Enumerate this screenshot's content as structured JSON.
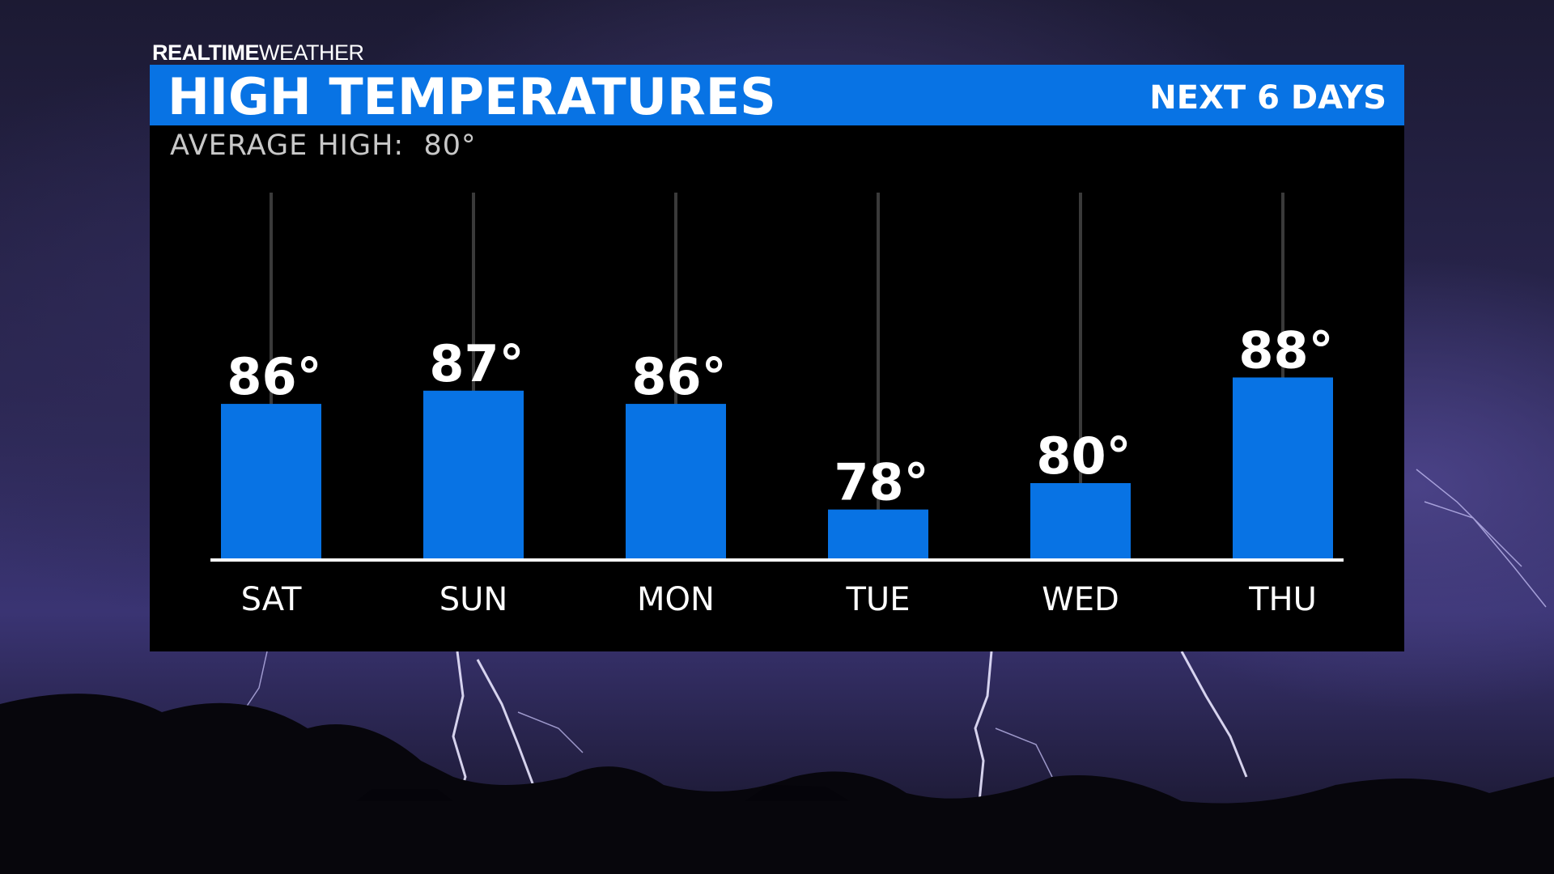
{
  "brand": {
    "bold": "REALTIME",
    "light": "WEATHER"
  },
  "header": {
    "title": "HIGH TEMPERATURES",
    "right": "NEXT 6 DAYS"
  },
  "average": {
    "label": "AVERAGE HIGH:  80°"
  },
  "colors": {
    "accent": "#0873e4",
    "panel": "#000000",
    "text": "#ffffff"
  },
  "chart_data": {
    "type": "bar",
    "categories": [
      "SAT",
      "SUN",
      "MON",
      "TUE",
      "WED",
      "THU"
    ],
    "values": [
      86,
      87,
      86,
      78,
      80,
      88
    ],
    "value_labels": [
      "86°",
      "87°",
      "86°",
      "78°",
      "80°",
      "88°"
    ],
    "title": "HIGH TEMPERATURES",
    "xlabel": "",
    "ylabel": "",
    "ylim": [
      74.3,
      102
    ],
    "grid": false,
    "legend": "none"
  }
}
